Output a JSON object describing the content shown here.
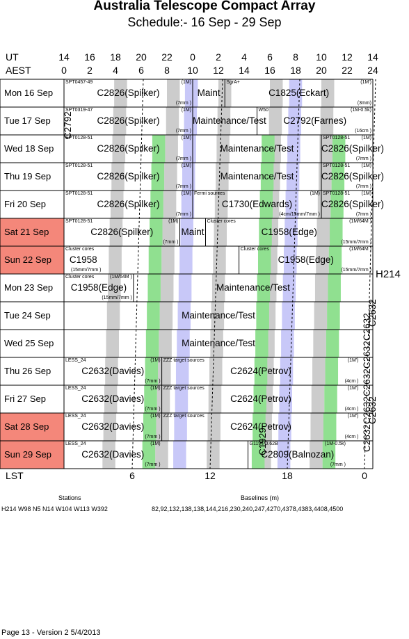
{
  "header": {
    "title": "Australia Telescope Compact Array",
    "subtitle": "Schedule:- 16 Sep - 29 Sep"
  },
  "axes": {
    "ut_label": "UT",
    "aest_label": "AEST",
    "lst_label": "LST",
    "ut_ticks": [
      "14",
      "16",
      "18",
      "20",
      "22",
      "0",
      "2",
      "4",
      "6",
      "8",
      "10",
      "12",
      "14"
    ],
    "aest_ticks": [
      "0",
      "2",
      "4",
      "6",
      "8",
      "10",
      "12",
      "14",
      "16",
      "18",
      "20",
      "22",
      "24"
    ],
    "lst_ticks": [
      "6",
      "12",
      "18",
      "0"
    ]
  },
  "days": [
    {
      "label": "Mon  16 Sep",
      "weekend": false
    },
    {
      "label": "Tue  17 Sep",
      "weekend": false
    },
    {
      "label": "Wed  18 Sep",
      "weekend": false
    },
    {
      "label": "Thu  19 Sep",
      "weekend": false
    },
    {
      "label": "Fri  20 Sep",
      "weekend": false
    },
    {
      "label": "Sat  21 Sep",
      "weekend": true
    },
    {
      "label": "Sun  22 Sep",
      "weekend": true
    },
    {
      "label": "Mon  23 Sep",
      "weekend": false
    },
    {
      "label": "Tue  24 Sep",
      "weekend": false
    },
    {
      "label": "Wed  25 Sep",
      "weekend": false
    },
    {
      "label": "Thu  26 Sep",
      "weekend": false
    },
    {
      "label": "Fri  27 Sep",
      "weekend": false
    },
    {
      "label": "Sat  28 Sep",
      "weekend": true
    },
    {
      "label": "Sun  29 Sep",
      "weekend": true
    }
  ],
  "blocks": [
    {
      "row": 0,
      "main": "C2826(Spilker)",
      "tl": "SPT0457-49",
      "tr": "(1M)",
      "br": "(7mm )"
    },
    {
      "row": 0,
      "main": "Maint"
    },
    {
      "row": 0,
      "main": "C1825(Eckart)",
      "tl": "SgrA+",
      "tr": "(1M')",
      "br": "(3mm)"
    },
    {
      "row": 1,
      "main": "C2826(Spilker)",
      "tl": "SPT0319-47",
      "tr": "(1M)",
      "br": "(7mm )"
    },
    {
      "row": 1,
      "main": "Maintenance/Test"
    },
    {
      "row": 1,
      "main": "C2792(Farnes)",
      "tl": "W50",
      "tr": "(1M-0.5k)",
      "br": "(16cm )"
    },
    {
      "row": 2,
      "main": "C2826(Spilker)",
      "tl": "SPT0128-51",
      "tr": "(1M)",
      "br": "(7mm )"
    },
    {
      "row": 2,
      "main": "Maintenance/Test"
    },
    {
      "row": 2,
      "main": "C2826(Spilker)",
      "tl": "SPT0128-51",
      "tr": "(1M)",
      "br": "(7mm )"
    },
    {
      "row": 3,
      "main": "C2826(Spilker)",
      "tl": "SPT0128-51",
      "tr": "(1M)",
      "br": "(7mm )"
    },
    {
      "row": 3,
      "main": "Maintenance/Test"
    },
    {
      "row": 3,
      "main": "C2826(Spilker)",
      "tl": "SPT0128-51",
      "tr": "(1M)",
      "br": "(7mm )"
    },
    {
      "row": 4,
      "main": "C2826(Spilker)",
      "tl": "SPT0128-51",
      "tr": "(1M)",
      "br": "(7mm )"
    },
    {
      "row": 4,
      "main": "C1730(Edwards)",
      "tl": "Fermi sources",
      "tr": "(1M)",
      "br": "(4cm/15mm/7mm )"
    },
    {
      "row": 4,
      "main": "C2826(Spilker)",
      "tl": "SPT0128-51",
      "tr": "(1M)",
      "br": "(7mm )"
    },
    {
      "row": 5,
      "main": "C2826(Spilker)",
      "tl": "SPT0128-51",
      "tr": "(1M)",
      "br": "(7mm )"
    },
    {
      "row": 5,
      "main": "Maint"
    },
    {
      "row": 5,
      "main": "C1958(Edge)",
      "tl": "Cluster cores",
      "tr": "(1M/64M )",
      "br": "(15mm/7mm )"
    },
    {
      "row": 6,
      "main": "C1958",
      "tl": "Cluster cores",
      "br": "(15mm/7mm )"
    },
    {
      "row": 6,
      "main": "C1958(Edge)",
      "tl": "Cluster cores",
      "tr": "(1M/64M )",
      "br": "(15mm/7mm )"
    },
    {
      "row": 7,
      "main": "C1958(Edge)",
      "tl": "Cluster cores",
      "tr": "(1M/64M )",
      "br": "(15mm/7mm )"
    },
    {
      "row": 7,
      "main": "Maintenance/Test"
    },
    {
      "row": 8,
      "main": "Maintenance/Test"
    },
    {
      "row": 9,
      "main": "Maintenance/Test"
    },
    {
      "row": 10,
      "main": "C2632(Davies)",
      "tl": "LESS_24",
      "tr": "(1M)",
      "br": "(7mm )"
    },
    {
      "row": 10,
      "main": "C2624(Petrov)",
      "tl": "ZZZ target sources",
      "tr": "(1M')",
      "br": "(4cm )"
    },
    {
      "row": 11,
      "main": "C2632(Davies)",
      "tl": "LESS_24",
      "tr": "(1M)",
      "br": "(7mm )"
    },
    {
      "row": 11,
      "main": "C2624(Petrov)",
      "tl": "ZZZ target sources",
      "tr": "(1M')",
      "br": "(4cm )"
    },
    {
      "row": 12,
      "main": "C2632(Davies)",
      "tl": "LESS_24",
      "tr": "(1M)",
      "br": "(7mm )"
    },
    {
      "row": 12,
      "main": "C2624(Petrov)",
      "tl": "ZZZ target sources",
      "tr": "(1M')",
      "br": "(4cm )"
    },
    {
      "row": 13,
      "main": "C2632(Davies)",
      "tl": "LESS_24",
      "tr": "(1M)",
      "br": "(7mm )"
    },
    {
      "row": 13,
      "main": "C2809(Balnozan)",
      "tl": "G1194-0.62B",
      "tr": "(1M-0.5k)",
      "br": "(7mm )"
    }
  ],
  "vertical_labels": {
    "c2792": "C2792",
    "c1929": "C1929",
    "c2632_a": "C2632",
    "c2632_b": "C2632",
    "c2632_c": "C2632",
    "c2632_d": "C2632",
    "c2632_e": "C2632",
    "c2632_f": "C2632",
    "c2632_g": "C2632"
  },
  "config": "H214",
  "stations": {
    "heading": "Stations",
    "value": "H214   W98 N5 N14 W104 W113 W392"
  },
  "baselines": {
    "heading": "Baselines (m)",
    "value": "82,92,132,138,138,144,216,230,240,247,4270,4378,4383,4408,4500"
  },
  "footer": "Page 13 - Version 2  5/4/2013",
  "colors": {
    "weekend": "#f4877a",
    "night_gray": "#cccccc",
    "blue_band": "#c8c8f8",
    "green_band": "#90e090"
  }
}
